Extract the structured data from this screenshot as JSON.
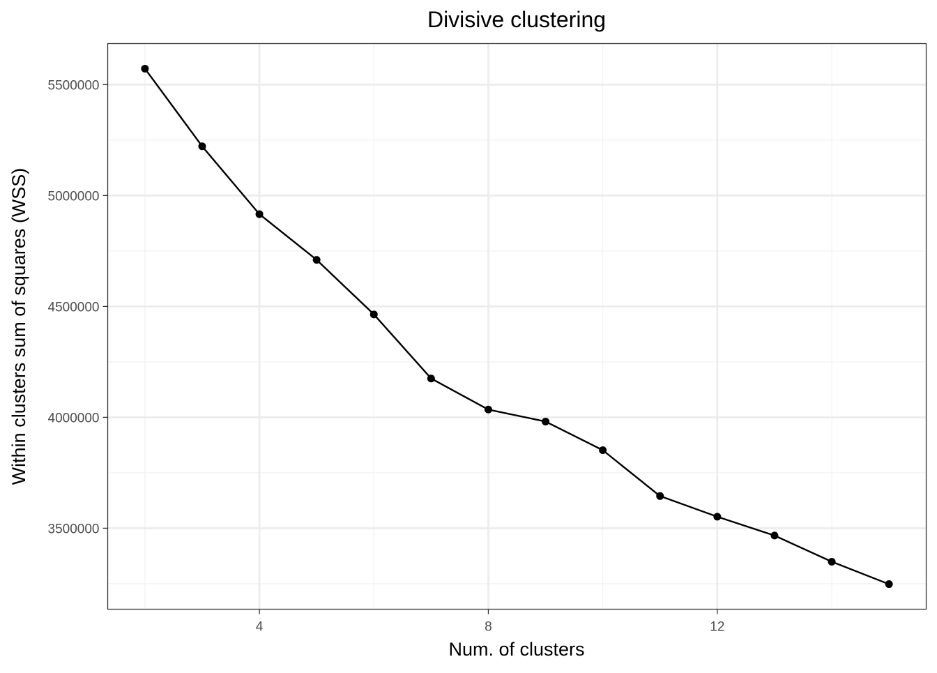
{
  "chart_data": {
    "type": "line",
    "title": "Divisive clustering",
    "xlabel": "Num. of clusters",
    "ylabel": "Within clusters sum of squares (WSS)",
    "x": [
      2,
      3,
      4,
      5,
      6,
      7,
      8,
      9,
      10,
      11,
      12,
      13,
      14,
      15
    ],
    "series": [
      {
        "values": [
          5572000,
          5222000,
          4916000,
          4710000,
          4464000,
          4175000,
          4035000,
          3981000,
          3852000,
          3645000,
          3552000,
          3467000,
          3349000,
          3248000
        ]
      }
    ],
    "xlim": [
      1.35,
      15.65
    ],
    "ylim": [
      3135000,
      5685000
    ],
    "x_ticks": [
      4,
      8,
      12
    ],
    "x_tick_labels": [
      "4",
      "8",
      "12"
    ],
    "x_minor_ticks": [
      2,
      6,
      10,
      14
    ],
    "y_ticks": [
      3500000,
      4000000,
      4500000,
      5000000,
      5500000
    ],
    "y_tick_labels": [
      "3500000",
      "4000000",
      "4500000",
      "5000000",
      "5500000"
    ],
    "y_minor_ticks": [
      3250000,
      3750000,
      4250000,
      4750000,
      5250000
    ],
    "grid": true,
    "legend": "none",
    "colors": {
      "line": "#000000",
      "point": "#000000",
      "grid_major": "#ebebeb",
      "grid_minor": "#f2f2f2",
      "panel_border": "#333333",
      "tick_label": "#4d4d4d"
    }
  }
}
